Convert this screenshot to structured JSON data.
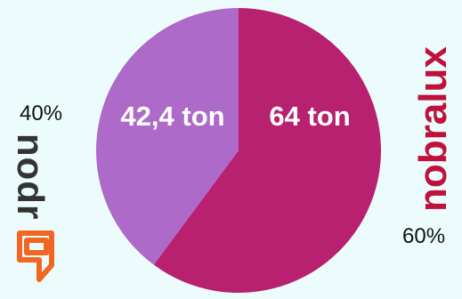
{
  "chart_data": {
    "type": "pie",
    "start_angle_deg": 0,
    "direction": "clockwise",
    "slices": [
      {
        "label": "64 ton",
        "value": 64,
        "percent_label": "60%",
        "color": "#b82070"
      },
      {
        "label": "42,4 ton",
        "value": 42.4,
        "percent_label": "40%",
        "color": "#ad6ac8"
      }
    ]
  },
  "logos": {
    "left": {
      "text": "nodr",
      "color": "#333333",
      "accent": "#f26522"
    },
    "right": {
      "text": "nobralux",
      "color": "#c0113c"
    }
  }
}
